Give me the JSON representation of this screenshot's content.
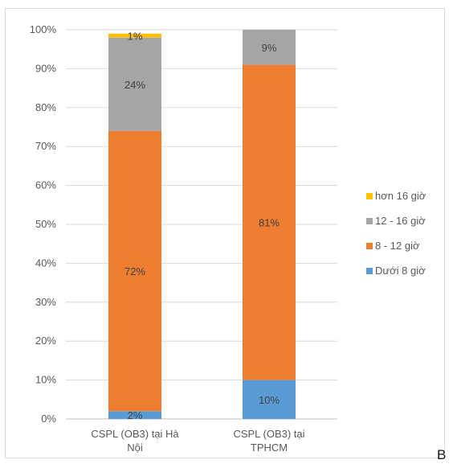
{
  "chart_data": {
    "type": "bar",
    "stacked": true,
    "categories": [
      "CSPL (OB3) tại Hà Nội",
      "CSPL (OB3) tại TPHCM"
    ],
    "category_lines": [
      [
        "CSPL (OB3) tại Hà",
        "Nội"
      ],
      [
        "CSPL (OB3) tại",
        "TPHCM"
      ]
    ],
    "series": [
      {
        "name": "Dưới 8 giờ",
        "values": [
          2,
          10
        ],
        "color": "#5b9bd5",
        "labels": [
          "2%",
          "10%"
        ]
      },
      {
        "name": "8 - 12 giờ",
        "values": [
          72,
          81
        ],
        "color": "#ed7d31",
        "labels": [
          "72%",
          "81%"
        ]
      },
      {
        "name": "12 - 16 giờ",
        "values": [
          24,
          9
        ],
        "color": "#a5a5a5",
        "labels": [
          "24%",
          "9%"
        ]
      },
      {
        "name": "hơn 16 giờ",
        "values": [
          1,
          0
        ],
        "color": "#ffc000",
        "labels": [
          "1%",
          ""
        ]
      }
    ],
    "y_ticks": [
      "0%",
      "10%",
      "20%",
      "30%",
      "40%",
      "50%",
      "60%",
      "70%",
      "80%",
      "90%",
      "100%"
    ],
    "ylim": [
      0,
      100
    ],
    "grid": true,
    "legend_position": "right"
  },
  "corner_label": "B"
}
